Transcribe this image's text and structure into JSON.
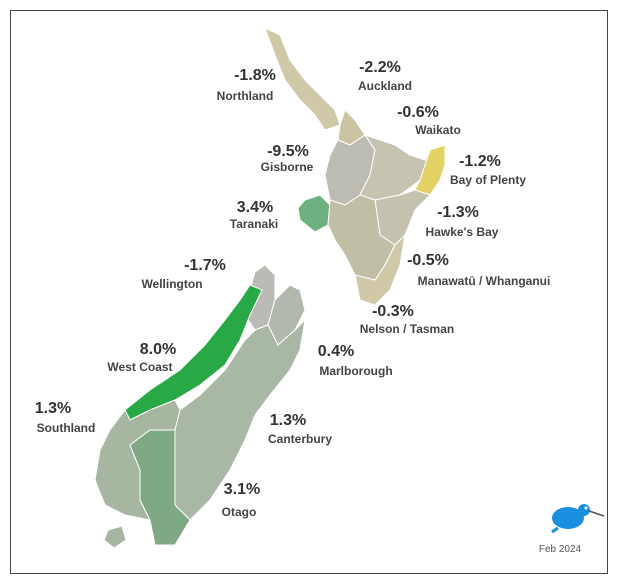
{
  "map": {
    "date": "Feb 2024",
    "regions": [
      {
        "name": "Northland",
        "value": -1.8,
        "value_label": "-1.8%",
        "color": "#cfc9a8"
      },
      {
        "name": "Auckland",
        "value": -2.2,
        "value_label": "-2.2%",
        "color": "#cac4a2"
      },
      {
        "name": "Waikato",
        "value": -0.6,
        "value_label": "-0.6%",
        "color": "#bdbcb2"
      },
      {
        "name": "Bay of Plenty",
        "value": -1.2,
        "value_label": "-1.2%",
        "color": "#c6c3b0"
      },
      {
        "name": "Gisborne",
        "value": -9.5,
        "value_label": "-9.5%",
        "color": "#e3d265"
      },
      {
        "name": "Hawke's Bay",
        "value": -1.3,
        "value_label": "-1.3%",
        "color": "#c4c1ae"
      },
      {
        "name": "Taranaki",
        "value": 3.4,
        "value_label": "3.4%",
        "color": "#6fb07f"
      },
      {
        "name": "Manawatū / Whanganui",
        "value": -0.5,
        "value_label": "-0.5%",
        "color": "#c1bea6"
      },
      {
        "name": "Wellington",
        "value": -1.7,
        "value_label": "-1.7%",
        "color": "#cfc9a8"
      },
      {
        "name": "Nelson / Tasman",
        "value": -0.3,
        "value_label": "-0.3%",
        "color": "#bbbab4"
      },
      {
        "name": "Marlborough",
        "value": 0.4,
        "value_label": "0.4%",
        "color": "#b2b8ad"
      },
      {
        "name": "West Coast",
        "value": 8.0,
        "value_label": "8.0%",
        "color": "#29a846"
      },
      {
        "name": "Southland",
        "value": 1.3,
        "value_label": "1.3%",
        "color": "#a6b6a1"
      },
      {
        "name": "Canterbury",
        "value": 1.3,
        "value_label": "1.3%",
        "color": "#a9b8a5"
      },
      {
        "name": "Otago",
        "value": 3.1,
        "value_label": "3.1%",
        "color": "#7fa983"
      }
    ]
  }
}
